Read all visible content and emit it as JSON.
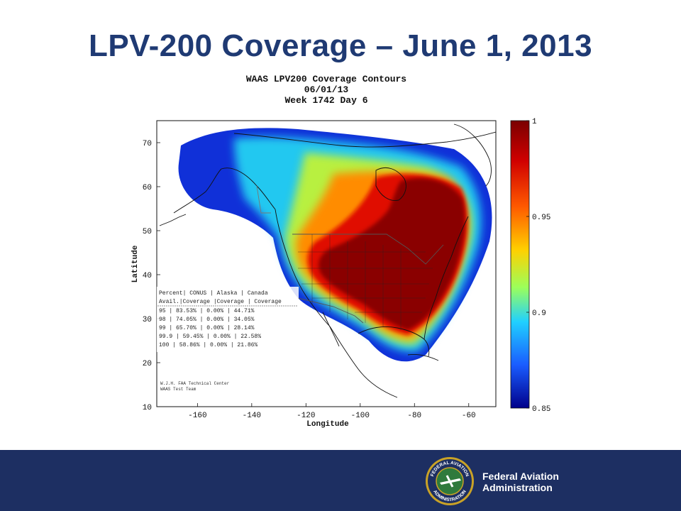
{
  "slide": {
    "title": "LPV-200 Coverage – June 1, 2013"
  },
  "plot": {
    "title_lines": [
      "WAAS LPV200 Coverage Contours",
      "06/01/13",
      "Week 1742 Day 6"
    ],
    "xlabel": "Longitude",
    "ylabel": "Latitude",
    "x_ticks": [
      "-160",
      "-140",
      "-120",
      "-100",
      "-80",
      "-60"
    ],
    "y_ticks": [
      "70",
      "60",
      "50",
      "40",
      "30",
      "20",
      "10"
    ],
    "colorbar_ticks": [
      "1",
      "0.95",
      "0.9",
      "0.85"
    ],
    "colorbar_colors": [
      "#7a0000",
      "#d00000",
      "#ff5a00",
      "#ffd000",
      "#9cff5a",
      "#20d0ff",
      "#1a5cff",
      "#00008a"
    ],
    "table_lines": [
      "Percent| CONUS   | Alaska  | Canada",
      " Avail.|Coverage |Coverage | Coverage",
      "   95   | 83.53%  | 0.00% | 44.71%",
      "   98   | 74.05%  | 0.00% | 34.05%",
      "   99   | 65.70%  | 0.00% | 28.14%",
      "  99.9  | 59.45%  | 0.00% | 22.58%",
      "  100   | 58.86%  | 0.00% | 21.86%"
    ],
    "credit_lines": [
      "W.J.H. FAA Technical Center",
      "WAAS Test Team"
    ]
  },
  "footer": {
    "agency_line1": "Federal Aviation",
    "agency_line2": "Administration",
    "seal_top_text": "FEDERAL AVIATION",
    "seal_bottom_text": "ADMINISTRATION",
    "bg_color": "#1d2f62"
  }
}
